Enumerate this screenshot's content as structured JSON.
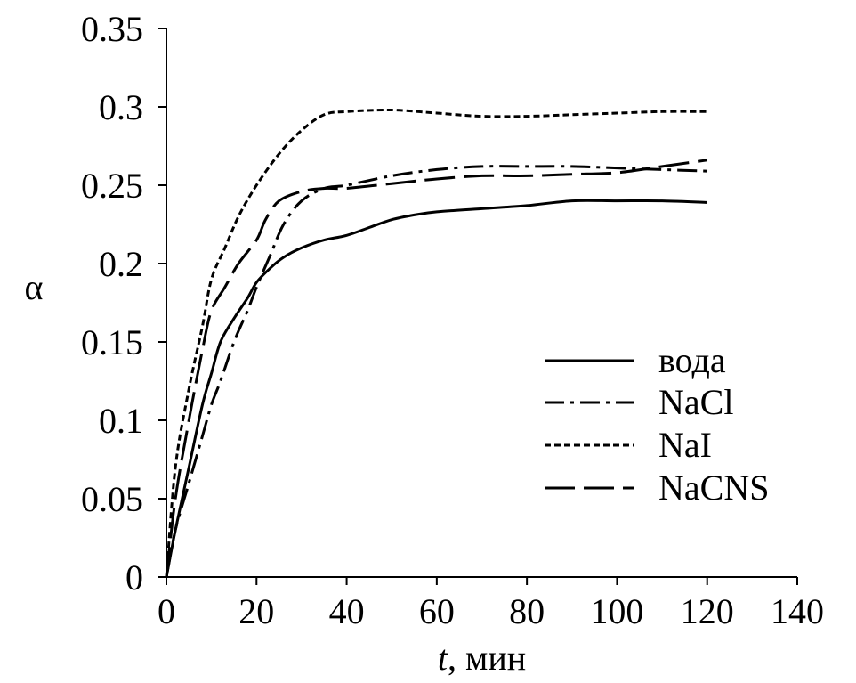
{
  "chart_data": {
    "type": "line",
    "xlabel_italic": "t",
    "xlabel_rest": ", мин",
    "ylabel": "α",
    "xlim": [
      0,
      140
    ],
    "ylim": [
      0,
      0.35
    ],
    "x_ticks": [
      "0",
      "20",
      "40",
      "60",
      "80",
      "100",
      "120",
      "140"
    ],
    "y_ticks": [
      "0",
      "0.05",
      "0.1",
      "0.15",
      "0.2",
      "0.25",
      "0.3",
      "0.35"
    ],
    "legend_position": "right",
    "series": [
      {
        "name": "вода",
        "style": "solid",
        "x": [
          0,
          2,
          5,
          8,
          10,
          12,
          15,
          18,
          20,
          23,
          26,
          30,
          35,
          40,
          45,
          50,
          55,
          60,
          70,
          80,
          90,
          100,
          110,
          120
        ],
        "y": [
          0,
          0.03,
          0.07,
          0.11,
          0.13,
          0.15,
          0.165,
          0.178,
          0.188,
          0.197,
          0.204,
          0.21,
          0.215,
          0.218,
          0.223,
          0.228,
          0.231,
          0.233,
          0.235,
          0.237,
          0.24,
          0.24,
          0.24,
          0.239
        ]
      },
      {
        "name": "NaCl",
        "style": "dashdot",
        "x": [
          0,
          2,
          5,
          8,
          10,
          12,
          15,
          18,
          20,
          23,
          26,
          30,
          35,
          40,
          50,
          60,
          70,
          80,
          90,
          100,
          110,
          120
        ],
        "y": [
          0,
          0.03,
          0.06,
          0.09,
          0.11,
          0.125,
          0.15,
          0.17,
          0.185,
          0.205,
          0.225,
          0.24,
          0.248,
          0.25,
          0.256,
          0.26,
          0.262,
          0.262,
          0.262,
          0.261,
          0.26,
          0.259
        ]
      },
      {
        "name": "NaI",
        "style": "dotted",
        "x": [
          0,
          2,
          5,
          8,
          10,
          13,
          16,
          20,
          25,
          30,
          35,
          40,
          50,
          60,
          70,
          80,
          90,
          100,
          110,
          120
        ],
        "y": [
          0,
          0.07,
          0.12,
          0.16,
          0.19,
          0.21,
          0.23,
          0.25,
          0.27,
          0.285,
          0.295,
          0.297,
          0.298,
          0.296,
          0.294,
          0.294,
          0.295,
          0.296,
          0.297,
          0.297
        ]
      },
      {
        "name": "NaCNS",
        "style": "longdash",
        "x": [
          0,
          2,
          5,
          8,
          10,
          13,
          16,
          20,
          22,
          25,
          30,
          35,
          40,
          50,
          60,
          70,
          80,
          90,
          100,
          110,
          120
        ],
        "y": [
          0,
          0.05,
          0.1,
          0.145,
          0.17,
          0.185,
          0.2,
          0.215,
          0.228,
          0.24,
          0.246,
          0.248,
          0.248,
          0.251,
          0.254,
          0.256,
          0.256,
          0.257,
          0.258,
          0.262,
          0.266
        ]
      }
    ]
  }
}
